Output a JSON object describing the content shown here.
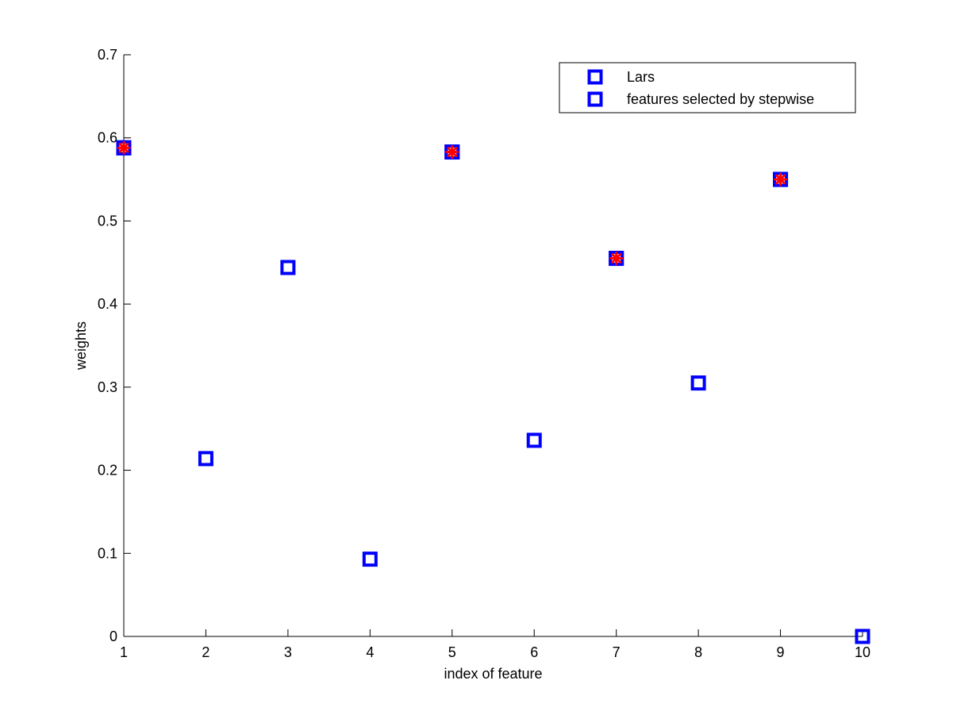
{
  "chart_data": {
    "type": "scatter",
    "title": "",
    "xlabel": "index of feature",
    "ylabel": "weights",
    "xlim": [
      1,
      10
    ],
    "ylim": [
      0,
      0.7
    ],
    "x_ticks": [
      1,
      2,
      3,
      4,
      5,
      6,
      7,
      8,
      9,
      10
    ],
    "y_ticks": [
      0,
      0.1,
      0.2,
      0.3,
      0.4,
      0.5,
      0.6,
      0.7
    ],
    "y_tick_labels": [
      "0",
      "0.1",
      "0.2",
      "0.3",
      "0.4",
      "0.5",
      "0.6",
      "0.7"
    ],
    "grid": false,
    "legend_position": "top-right",
    "series": [
      {
        "name": "Lars",
        "marker": "square",
        "color": "#0000ff",
        "x": [
          1,
          2,
          3,
          4,
          5,
          6,
          7,
          8,
          9,
          10
        ],
        "y": [
          0.588,
          0.214,
          0.444,
          0.093,
          0.583,
          0.236,
          0.455,
          0.305,
          0.55,
          0.0
        ]
      },
      {
        "name": "features selected by stepwise",
        "marker": "square-asterisk",
        "color": "#0000ff",
        "overlay_color": "#ff0000",
        "x": [
          1,
          5,
          7,
          9
        ],
        "y": [
          0.588,
          0.583,
          0.455,
          0.55
        ]
      }
    ]
  }
}
